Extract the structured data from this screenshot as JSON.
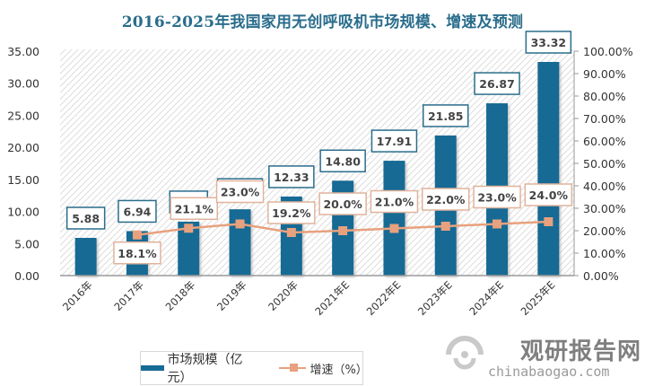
{
  "chart_data": {
    "type": "bar",
    "title": "2016-2025年我国家用无创呼吸机市场规模、增速及预测",
    "categories": [
      "2016年",
      "2017年",
      "2018年",
      "2019年",
      "2020年",
      "2021年E",
      "2022年E",
      "2023年E",
      "2024年E",
      "2025年E"
    ],
    "series": [
      {
        "name": "市场规模（亿元）",
        "type": "bar",
        "axis": "left",
        "values": [
          5.88,
          6.94,
          8.41,
          10.34,
          12.33,
          14.8,
          17.91,
          21.85,
          26.87,
          33.32
        ],
        "labels": [
          "5.88",
          "6.94",
          "8.41",
          "10.34",
          "12.33",
          "14.80",
          "17.91",
          "21.85",
          "26.87",
          "33.32"
        ]
      },
      {
        "name": "增速（%）",
        "type": "line",
        "axis": "right",
        "values": [
          null,
          18.1,
          21.1,
          23.0,
          19.2,
          20.0,
          21.0,
          22.0,
          23.0,
          24.0
        ],
        "labels": [
          "",
          "18.1%",
          "21.1%",
          "23.0%",
          "19.2%",
          "20.0%",
          "21.0%",
          "22.0%",
          "23.0%",
          "24.0%"
        ]
      }
    ],
    "y_left": {
      "range": [
        0,
        35
      ],
      "ticks": [
        "0.00",
        "5.00",
        "10.00",
        "15.00",
        "20.00",
        "25.00",
        "30.00",
        "35.00"
      ]
    },
    "y_right": {
      "range": [
        0,
        100
      ],
      "ticks": [
        "0.00%",
        "10.00%",
        "20.00%",
        "30.00%",
        "40.00%",
        "50.00%",
        "60.00%",
        "70.00%",
        "80.00%",
        "90.00%",
        "100.00%"
      ]
    },
    "xlabel": "",
    "ylabel": "",
    "grid": false,
    "legend": "bottom",
    "colors": {
      "bar": "#176b94",
      "line": "#e8a17e",
      "title": "#2a6d8c"
    }
  },
  "legend": {
    "bar_label": "市场规模（亿元）",
    "line_label": "增速（%）"
  },
  "watermark": {
    "cn": "观研报告网",
    "en": "chinabaogao.com"
  }
}
